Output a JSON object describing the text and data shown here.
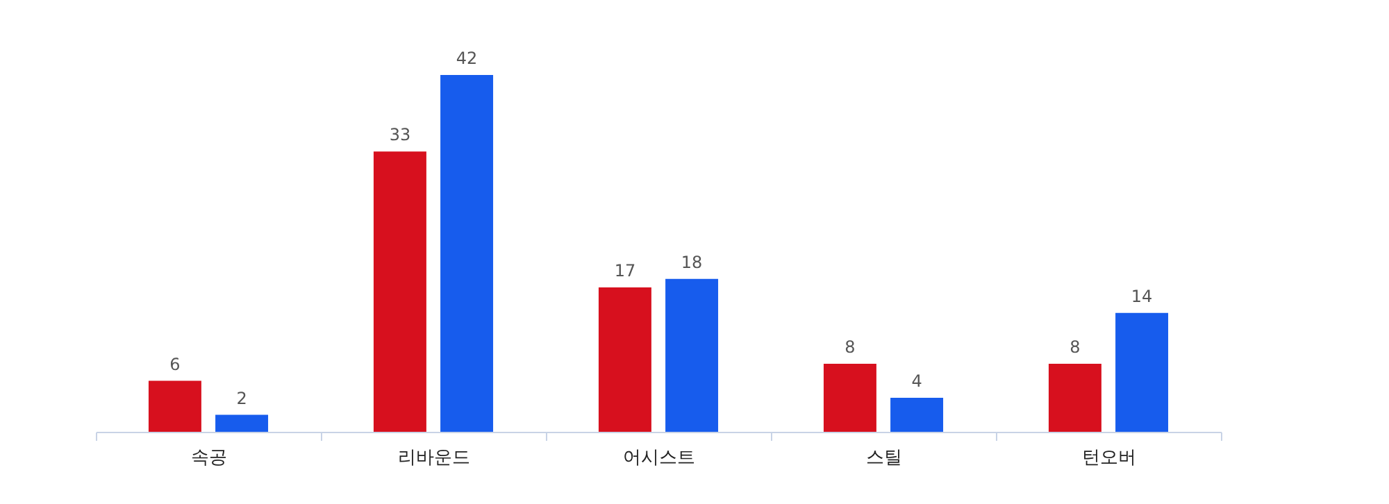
{
  "chart_data": {
    "type": "bar",
    "categories": [
      "속공",
      "리바운드",
      "어시스트",
      "스틸",
      "턴오버"
    ],
    "series": [
      {
        "color": "#d7101e",
        "values": [
          6,
          33,
          17,
          8,
          8
        ]
      },
      {
        "color": "#175ced",
        "values": [
          2,
          42,
          18,
          4,
          14
        ]
      }
    ],
    "data_labels": true,
    "tick_labels": "x"
  }
}
